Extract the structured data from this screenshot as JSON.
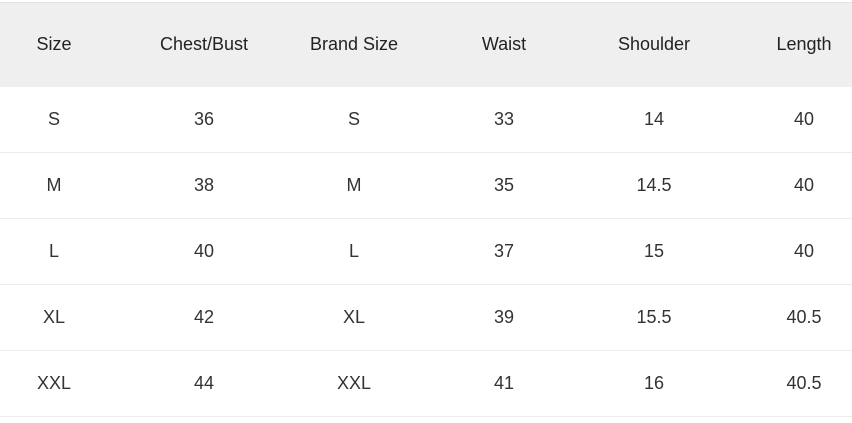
{
  "size_chart": {
    "headers": [
      "Size",
      "Chest/Bust",
      "Brand Size",
      "Waist",
      "Shoulder",
      "Length"
    ],
    "rows": [
      [
        "S",
        "36",
        "S",
        "33",
        "14",
        "40"
      ],
      [
        "M",
        "38",
        "M",
        "35",
        "14.5",
        "40"
      ],
      [
        "L",
        "40",
        "L",
        "37",
        "15",
        "40"
      ],
      [
        "XL",
        "42",
        "XL",
        "39",
        "15.5",
        "40.5"
      ],
      [
        "XXL",
        "44",
        "XXL",
        "41",
        "16",
        "40.5"
      ]
    ]
  }
}
